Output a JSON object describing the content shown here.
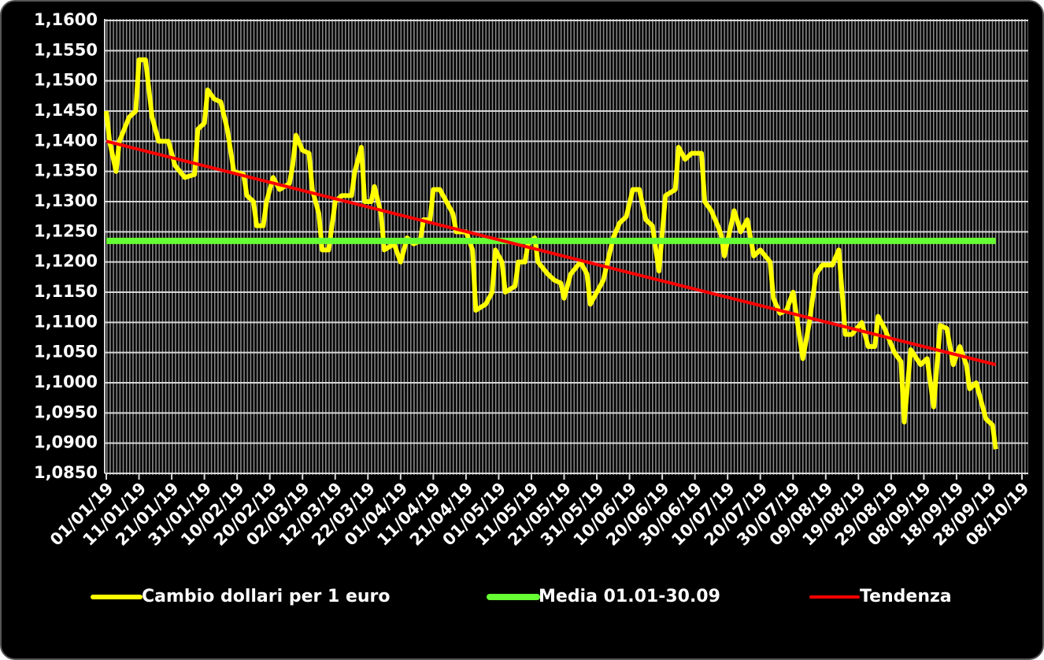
{
  "chart_data": {
    "type": "line",
    "series": [
      {
        "name": "Cambio dollari per 1 euro",
        "color": "#ffff00",
        "x": [
          "01/01/19",
          "02/01/19",
          "04/01/19",
          "05/01/19",
          "08/01/19",
          "10/01/19",
          "11/01/19",
          "13/01/19",
          "15/01/19",
          "17/01/19",
          "20/01/19",
          "22/01/19",
          "25/01/19",
          "28/01/19",
          "29/01/19",
          "31/01/19",
          "01/02/19",
          "03/02/19",
          "05/02/19",
          "07/02/19",
          "09/02/19",
          "12/02/19",
          "13/02/19",
          "15/02/19",
          "16/02/19",
          "18/02/19",
          "19/02/19",
          "21/02/19",
          "23/02/19",
          "26/02/19",
          "27/02/19",
          "28/02/19",
          "02/03/19",
          "04/03/19",
          "05/03/19",
          "07/03/19",
          "08/03/19",
          "10/03/19",
          "11/03/19",
          "12/03/19",
          "14/03/19",
          "17/03/19",
          "18/03/19",
          "20/03/19",
          "21/03/19",
          "23/03/19",
          "24/03/19",
          "26/03/19",
          "27/03/19",
          "30/03/19",
          "01/04/19",
          "03/04/19",
          "05/04/19",
          "07/04/19",
          "08/04/19",
          "10/04/19",
          "11/04/19",
          "13/04/19",
          "15/04/19",
          "17/04/19",
          "18/04/19",
          "21/04/19",
          "23/04/19",
          "24/04/19",
          "27/04/19",
          "29/04/19",
          "30/04/19",
          "02/05/19",
          "03/05/19",
          "06/05/19",
          "07/05/19",
          "09/05/19",
          "10/05/19",
          "12/05/19",
          "13/05/19",
          "16/05/19",
          "18/05/19",
          "20/05/19",
          "21/05/19",
          "23/05/19",
          "26/05/19",
          "28/05/19",
          "29/05/19",
          "31/05/19",
          "02/06/19",
          "05/06/19",
          "07/06/19",
          "09/06/19",
          "11/06/19",
          "13/06/19",
          "15/06/19",
          "17/06/19",
          "19/06/19",
          "21/06/19",
          "24/06/19",
          "25/06/19",
          "27/06/19",
          "29/06/19",
          "02/07/19",
          "03/07/19",
          "05/07/19",
          "07/07/19",
          "08/07/19",
          "09/07/19",
          "12/07/19",
          "14/07/19",
          "16/07/19",
          "18/07/19",
          "20/07/19",
          "23/07/19",
          "24/07/19",
          "26/07/19",
          "28/07/19",
          "30/07/19",
          "02/08/19",
          "04/08/19",
          "06/08/19",
          "08/08/19",
          "11/08/19",
          "13/08/19",
          "15/08/19",
          "17/08/19",
          "20/08/19",
          "22/08/19",
          "24/08/19",
          "25/08/19",
          "27/08/19",
          "30/08/19",
          "01/09/19",
          "02/09/19",
          "04/09/19",
          "07/09/19",
          "09/09/19",
          "11/09/19",
          "13/09/19",
          "15/09/19",
          "17/09/19",
          "19/09/19",
          "21/09/19",
          "22/09/19",
          "24/09/19",
          "27/09/19",
          "29/09/19",
          "30/09/19"
        ],
        "values": [
          1.145,
          1.14,
          1.135,
          1.14,
          1.144,
          1.145,
          1.1535,
          1.1535,
          1.144,
          1.14,
          1.14,
          1.136,
          1.134,
          1.1345,
          1.142,
          1.143,
          1.1485,
          1.147,
          1.1465,
          1.142,
          1.135,
          1.1345,
          1.131,
          1.13,
          1.126,
          1.126,
          1.13,
          1.134,
          1.132,
          1.133,
          1.136,
          1.141,
          1.1385,
          1.138,
          1.132,
          1.128,
          1.122,
          1.122,
          1.126,
          1.13,
          1.131,
          1.131,
          1.135,
          1.139,
          1.13,
          1.13,
          1.1325,
          1.128,
          1.122,
          1.123,
          1.12,
          1.124,
          1.123,
          1.1235,
          1.127,
          1.127,
          1.132,
          1.132,
          1.13,
          1.128,
          1.125,
          1.125,
          1.122,
          1.112,
          1.113,
          1.115,
          1.122,
          1.12,
          1.115,
          1.116,
          1.12,
          1.12,
          1.123,
          1.124,
          1.12,
          1.118,
          1.117,
          1.1165,
          1.114,
          1.118,
          1.12,
          1.118,
          1.113,
          1.115,
          1.117,
          1.124,
          1.1265,
          1.1275,
          1.132,
          1.132,
          1.127,
          1.126,
          1.1185,
          1.131,
          1.132,
          1.139,
          1.137,
          1.138,
          1.138,
          1.13,
          1.1285,
          1.126,
          1.1245,
          1.121,
          1.1285,
          1.125,
          1.127,
          1.121,
          1.122,
          1.12,
          1.114,
          1.1115,
          1.112,
          1.115,
          1.104,
          1.11,
          1.118,
          1.1195,
          1.1195,
          1.122,
          1.108,
          1.108,
          1.11,
          1.106,
          1.106,
          1.111,
          1.109,
          1.105,
          1.1035,
          1.0935,
          1.1055,
          1.103,
          1.104,
          1.096,
          1.1095,
          1.109,
          1.103,
          1.106,
          1.103,
          1.099,
          1.1,
          1.094,
          1.093,
          1.089
        ]
      },
      {
        "name": "Media 01.01-30.09",
        "color": "#66ff33",
        "x": [
          "01/01/19",
          "30/09/19"
        ],
        "values": [
          1.1235,
          1.1235
        ]
      },
      {
        "name": "Tendenza",
        "color": "#ff0000",
        "x": [
          "01/01/19",
          "30/09/19"
        ],
        "values": [
          1.14,
          1.103
        ]
      }
    ],
    "xlim": [
      "01/01/19",
      "08/10/19"
    ],
    "xticks": [
      "01/01/19",
      "11/01/19",
      "21/01/19",
      "31/01/19",
      "10/02/19",
      "20/02/19",
      "02/03/19",
      "12/03/19",
      "22/03/19",
      "01/04/19",
      "11/04/19",
      "21/04/19",
      "01/05/19",
      "11/05/19",
      "21/05/19",
      "31/05/19",
      "10/06/19",
      "20/06/19",
      "30/06/19",
      "10/07/19",
      "20/07/19",
      "30/07/19",
      "09/08/19",
      "19/08/19",
      "29/08/19",
      "08/09/19",
      "18/09/19",
      "28/09/19",
      "08/10/19"
    ],
    "ylim": [
      1.085,
      1.16
    ],
    "yticks": [
      {
        "value": 1.085,
        "label": "1,0850"
      },
      {
        "value": 1.09,
        "label": "1,0900"
      },
      {
        "value": 1.095,
        "label": "1,0950"
      },
      {
        "value": 1.1,
        "label": "1,1000"
      },
      {
        "value": 1.105,
        "label": "1,1050"
      },
      {
        "value": 1.11,
        "label": "1,1100"
      },
      {
        "value": 1.115,
        "label": "1,1150"
      },
      {
        "value": 1.12,
        "label": "1,1200"
      },
      {
        "value": 1.125,
        "label": "1,1250"
      },
      {
        "value": 1.13,
        "label": "1,1300"
      },
      {
        "value": 1.135,
        "label": "1,1350"
      },
      {
        "value": 1.14,
        "label": "1,1400"
      },
      {
        "value": 1.145,
        "label": "1,1450"
      },
      {
        "value": 1.15,
        "label": "1,1500"
      },
      {
        "value": 1.155,
        "label": "1,1550"
      },
      {
        "value": 1.16,
        "label": "1,1600"
      }
    ],
    "grid": true,
    "legend": "bottom"
  }
}
